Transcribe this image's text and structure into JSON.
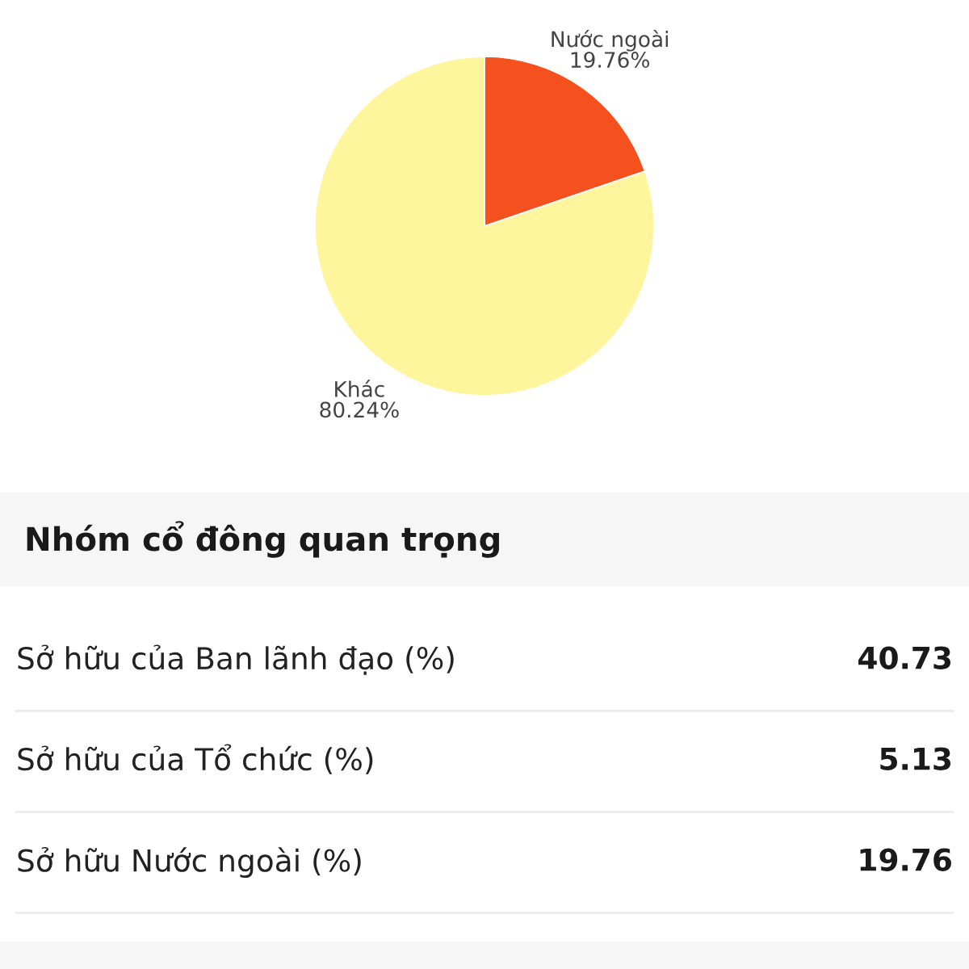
{
  "chart_data": [
    {
      "type": "pie",
      "categories": [
        "Nước ngoài",
        "Khác"
      ],
      "values": [
        19.76,
        80.24
      ],
      "colors": [
        "#f4511e",
        "#fff59d"
      ],
      "value_labels": [
        "19.76%",
        "80.24%"
      ]
    },
    {
      "type": "other",
      "title": "Nhóm cổ đông quan trọng",
      "categories": [
        "Sở hữu của Ban lãnh đạo (%)",
        "Sở hữu của Tổ chức (%)",
        "Sở hữu Nước ngoài (%)"
      ],
      "values": [
        40.73,
        5.13,
        19.76
      ],
      "data_labels": true
    }
  ]
}
